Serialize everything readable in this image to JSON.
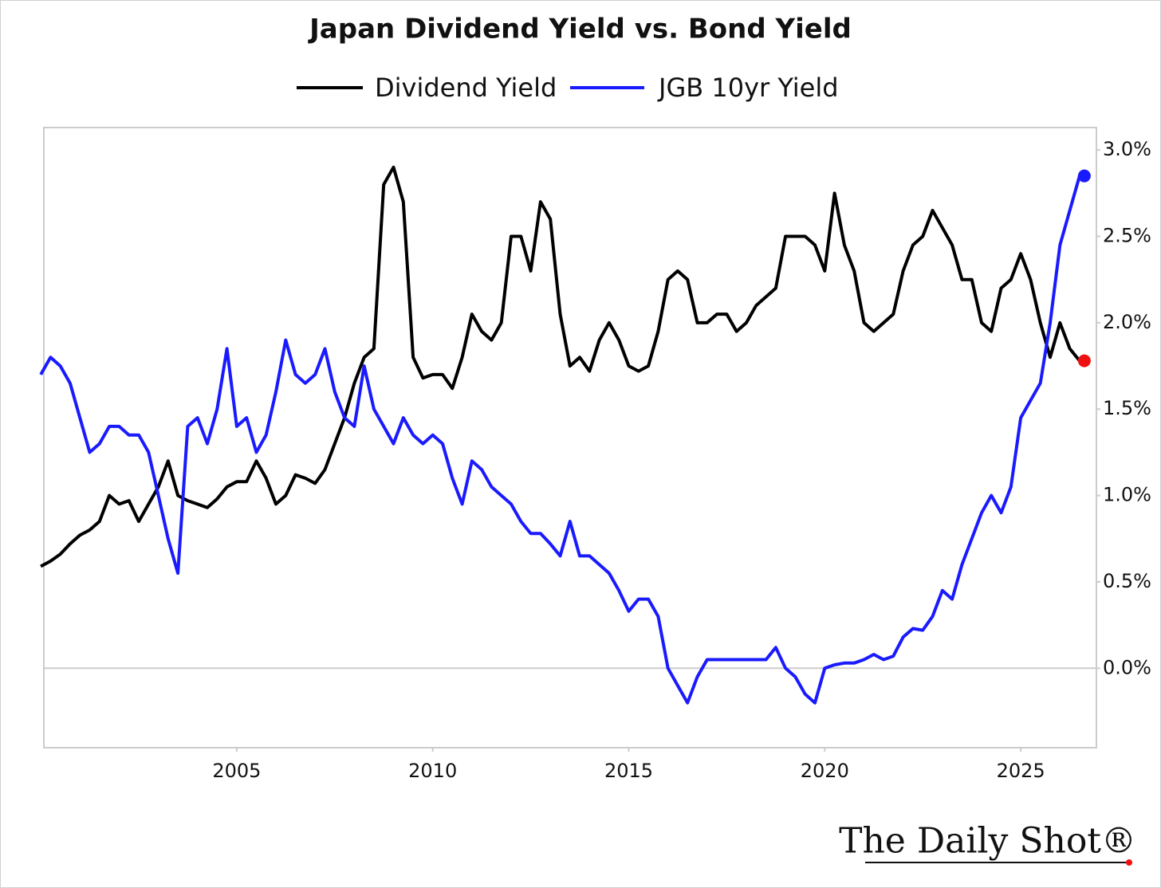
{
  "chart_data": {
    "type": "line",
    "title": "Japan Dividend Yield vs. Bond Yield",
    "x": [
      2000,
      2000.25,
      2000.5,
      2000.75,
      2001,
      2001.25,
      2001.5,
      2001.75,
      2002,
      2002.25,
      2002.5,
      2002.75,
      2003,
      2003.25,
      2003.5,
      2003.75,
      2004,
      2004.25,
      2004.5,
      2004.75,
      2005,
      2005.25,
      2005.5,
      2005.75,
      2006,
      2006.25,
      2006.5,
      2006.75,
      2007,
      2007.25,
      2007.5,
      2007.75,
      2008,
      2008.25,
      2008.5,
      2008.75,
      2009,
      2009.25,
      2009.5,
      2009.75,
      2010,
      2010.25,
      2010.5,
      2010.75,
      2011,
      2011.25,
      2011.5,
      2011.75,
      2012,
      2012.25,
      2012.5,
      2012.75,
      2013,
      2013.25,
      2013.5,
      2013.75,
      2014,
      2014.25,
      2014.5,
      2014.75,
      2015,
      2015.25,
      2015.5,
      2015.75,
      2016,
      2016.25,
      2016.5,
      2016.75,
      2017,
      2017.25,
      2017.5,
      2017.75,
      2018,
      2018.25,
      2018.5,
      2018.75,
      2019,
      2019.25,
      2019.5,
      2019.75,
      2020,
      2020.25,
      2020.5,
      2020.75,
      2021,
      2021.25,
      2021.5,
      2021.75,
      2022,
      2022.25,
      2022.5,
      2022.75,
      2023,
      2023.25,
      2023.5,
      2023.75,
      2024,
      2024.25,
      2024.5,
      2024.75,
      2025,
      2025.25,
      2025.5,
      2025.75,
      2026,
      2026.25,
      2026.5
    ],
    "series": [
      {
        "name": "Dividend Yield",
        "color": "#000000",
        "end_marker_color": "#ee1111",
        "values": [
          0.59,
          0.62,
          0.66,
          0.72,
          0.77,
          0.8,
          0.85,
          1.0,
          0.95,
          0.97,
          0.85,
          0.95,
          1.05,
          1.2,
          1.0,
          0.97,
          0.95,
          0.93,
          0.98,
          1.05,
          1.08,
          1.08,
          1.2,
          1.1,
          0.95,
          1.0,
          1.12,
          1.1,
          1.07,
          1.15,
          1.3,
          1.45,
          1.65,
          1.8,
          1.85,
          2.8,
          2.9,
          2.7,
          1.8,
          1.68,
          1.7,
          1.7,
          1.62,
          1.8,
          2.05,
          1.95,
          1.9,
          2.0,
          2.5,
          2.5,
          2.3,
          2.7,
          2.6,
          2.05,
          1.75,
          1.8,
          1.72,
          1.9,
          2.0,
          1.9,
          1.75,
          1.72,
          1.75,
          1.95,
          2.25,
          2.3,
          2.25,
          2.0,
          2.0,
          2.05,
          2.05,
          1.95,
          2.0,
          2.1,
          2.15,
          2.2,
          2.5,
          2.5,
          2.5,
          2.45,
          2.3,
          2.75,
          2.45,
          2.3,
          2.0,
          1.95,
          2.0,
          2.05,
          2.3,
          2.45,
          2.5,
          2.65,
          2.55,
          2.45,
          2.25,
          2.25,
          2.0,
          1.95,
          2.2,
          2.25,
          2.4,
          2.25,
          2.0,
          1.8,
          2.0,
          1.85,
          1.78
        ]
      },
      {
        "name": "JGB 10yr Yield",
        "color": "#1a1aff",
        "end_marker_color": "#1a1aff",
        "values": [
          1.7,
          1.8,
          1.75,
          1.65,
          1.45,
          1.25,
          1.3,
          1.4,
          1.4,
          1.35,
          1.35,
          1.25,
          1.0,
          0.75,
          0.55,
          1.4,
          1.45,
          1.3,
          1.5,
          1.85,
          1.4,
          1.45,
          1.25,
          1.35,
          1.6,
          1.9,
          1.7,
          1.65,
          1.7,
          1.85,
          1.6,
          1.45,
          1.4,
          1.75,
          1.5,
          1.4,
          1.3,
          1.45,
          1.35,
          1.3,
          1.35,
          1.3,
          1.1,
          0.95,
          1.2,
          1.15,
          1.05,
          1.0,
          0.95,
          0.85,
          0.78,
          0.78,
          0.72,
          0.65,
          0.85,
          0.65,
          0.65,
          0.6,
          0.55,
          0.45,
          0.33,
          0.4,
          0.4,
          0.3,
          0.0,
          -0.1,
          -0.2,
          -0.05,
          0.05,
          0.05,
          0.05,
          0.05,
          0.05,
          0.05,
          0.05,
          0.12,
          0.0,
          -0.05,
          -0.15,
          -0.2,
          0.0,
          0.02,
          0.03,
          0.03,
          0.05,
          0.08,
          0.05,
          0.07,
          0.18,
          0.23,
          0.22,
          0.3,
          0.45,
          0.4,
          0.6,
          0.75,
          0.9,
          1.0,
          0.9,
          1.05,
          1.45,
          1.55,
          1.65,
          2.0,
          2.45,
          2.65,
          2.85
        ]
      }
    ],
    "xlim": [
      2000.08,
      2026.93
    ],
    "xticks": [
      2005,
      2010,
      2015,
      2020,
      2025
    ],
    "ylim": [
      -0.46,
      3.13
    ],
    "yticks": [
      {
        "value": 0,
        "label": "0.0%"
      },
      {
        "value": 0.5,
        "label": "0.5%"
      },
      {
        "value": 1,
        "label": "1.0%"
      },
      {
        "value": 1.5,
        "label": "1.5%"
      },
      {
        "value": 2,
        "label": "2.0%"
      },
      {
        "value": 2.5,
        "label": "2.5%"
      },
      {
        "value": 3,
        "label": "3.0%"
      }
    ],
    "zero_line": true,
    "source": "The Daily Shot®"
  }
}
